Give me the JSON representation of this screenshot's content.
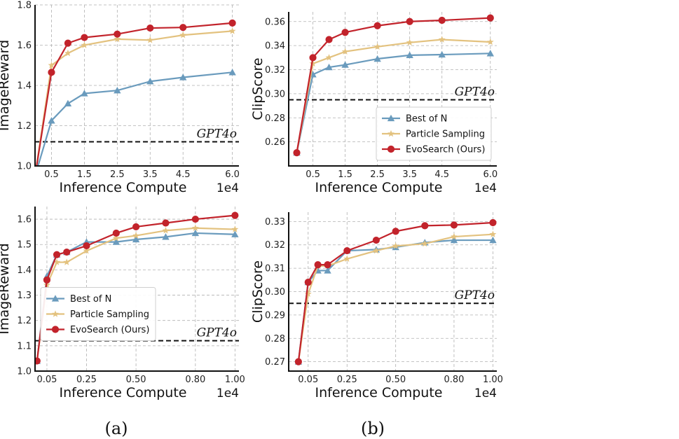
{
  "colors": {
    "best": "#6a9bbd",
    "particle": "#e3c27f",
    "evo": "#c2232b",
    "baseline": "#111111",
    "grid": "#b0b0b0"
  },
  "captions": [
    "(a)",
    "(b)"
  ],
  "chart_data": [
    {
      "type": "line",
      "ylabel": "ImageReward",
      "xlabel": "Inference Compute",
      "x_exponent": "1e4",
      "ylim": [
        1.0,
        1.8
      ],
      "xlim": [
        0,
        6.2
      ],
      "xticks": [
        0.5,
        1.5,
        2.5,
        3.5,
        4.5,
        6.0
      ],
      "xtick_labels": [
        "0.5",
        "1.5",
        "2.5",
        "3.5",
        "4.5",
        "6.0"
      ],
      "yticks": [
        1.0,
        1.2,
        1.4,
        1.6,
        1.8
      ],
      "ytick_labels": [
        "1.0",
        "1.2",
        "1.4",
        "1.6",
        "1.8"
      ],
      "baseline": {
        "label": "GPT4o",
        "value": 1.12
      },
      "legend": null,
      "series": [
        {
          "name": "Best of N",
          "key": "best",
          "marker": "triangle",
          "x": [
            0.0,
            0.5,
            1.0,
            1.5,
            2.5,
            3.5,
            4.5,
            6.0
          ],
          "values": [
            0.95,
            1.225,
            1.31,
            1.36,
            1.375,
            1.42,
            1.44,
            1.465
          ]
        },
        {
          "name": "Particle Sampling",
          "key": "particle",
          "marker": "star",
          "x": [
            0.0,
            0.5,
            1.0,
            1.5,
            2.5,
            3.5,
            4.5,
            6.0
          ],
          "values": [
            0.95,
            1.5,
            1.56,
            1.6,
            1.63,
            1.625,
            1.65,
            1.67
          ]
        },
        {
          "name": "EvoSearch (Ours)",
          "key": "evo",
          "marker": "circle",
          "x": [
            0.0,
            0.5,
            1.0,
            1.5,
            2.5,
            3.5,
            4.5,
            6.0
          ],
          "values": [
            0.95,
            1.465,
            1.61,
            1.638,
            1.655,
            1.685,
            1.688,
            1.71
          ]
        }
      ]
    },
    {
      "type": "line",
      "ylabel": "ClipScore",
      "xlabel": "Inference Compute",
      "x_exponent": "1e4",
      "ylim": [
        0.24,
        0.368
      ],
      "xlim": [
        -0.25,
        6.2
      ],
      "xticks": [
        0.5,
        1.5,
        2.5,
        3.5,
        4.5,
        6.0
      ],
      "xtick_labels": [
        "0.5",
        "1.5",
        "2.5",
        "3.5",
        "4.5",
        "6.0"
      ],
      "yticks": [
        0.26,
        0.28,
        0.3,
        0.32,
        0.34,
        0.36
      ],
      "ytick_labels": [
        "0.26",
        "0.28",
        "0.30",
        "0.32",
        "0.34",
        "0.36"
      ],
      "baseline": {
        "label": "GPT4o",
        "value": 0.295
      },
      "legend": "lower-right",
      "series": [
        {
          "name": "Best of N",
          "key": "best",
          "marker": "triangle",
          "x": [
            0.0,
            0.5,
            1.0,
            1.5,
            2.5,
            3.5,
            4.5,
            6.0
          ],
          "values": [
            0.251,
            0.316,
            0.322,
            0.324,
            0.329,
            0.332,
            0.3325,
            0.3335
          ]
        },
        {
          "name": "Particle Sampling",
          "key": "particle",
          "marker": "star",
          "x": [
            0.0,
            0.5,
            1.0,
            1.5,
            2.5,
            3.5,
            4.5,
            6.0
          ],
          "values": [
            0.251,
            0.325,
            0.33,
            0.335,
            0.339,
            0.3425,
            0.345,
            0.343
          ]
        },
        {
          "name": "EvoSearch (Ours)",
          "key": "evo",
          "marker": "circle",
          "x": [
            0.0,
            0.5,
            1.0,
            1.5,
            2.5,
            3.5,
            4.5,
            6.0
          ],
          "values": [
            0.251,
            0.33,
            0.345,
            0.351,
            0.3565,
            0.36,
            0.361,
            0.363
          ]
        }
      ]
    },
    {
      "type": "line",
      "ylabel": "ImageReward",
      "xlabel": "Inference Compute",
      "x_exponent": "1e4",
      "ylim": [
        1.0,
        1.65
      ],
      "xlim": [
        -0.01,
        1.02
      ],
      "xticks": [
        0.05,
        0.25,
        0.5,
        0.8,
        1.0
      ],
      "xtick_labels": [
        "0.05",
        "0.25",
        "0.50",
        "0.80",
        "1.00"
      ],
      "yticks": [
        1.0,
        1.1,
        1.2,
        1.3,
        1.4,
        1.5,
        1.6
      ],
      "ytick_labels": [
        "1.0",
        "1.1",
        "1.2",
        "1.3",
        "1.4",
        "1.5",
        "1.6"
      ],
      "baseline": {
        "label": "GPT4o",
        "value": 1.12
      },
      "legend": "center-left",
      "series": [
        {
          "name": "Best of N",
          "key": "best",
          "marker": "triangle",
          "x": [
            0.0,
            0.05,
            0.1,
            0.15,
            0.25,
            0.4,
            0.5,
            0.65,
            0.8,
            1.0
          ],
          "values": [
            1.04,
            1.375,
            1.46,
            1.47,
            1.51,
            1.51,
            1.52,
            1.53,
            1.545,
            1.54
          ]
        },
        {
          "name": "Particle Sampling",
          "key": "particle",
          "marker": "star",
          "x": [
            0.0,
            0.05,
            0.1,
            0.15,
            0.25,
            0.4,
            0.5,
            0.65,
            0.8,
            1.0
          ],
          "values": [
            1.04,
            1.34,
            1.43,
            1.43,
            1.475,
            1.525,
            1.535,
            1.555,
            1.565,
            1.56
          ]
        },
        {
          "name": "EvoSearch (Ours)",
          "key": "evo",
          "marker": "circle",
          "x": [
            0.0,
            0.05,
            0.1,
            0.15,
            0.25,
            0.4,
            0.5,
            0.65,
            0.8,
            1.0
          ],
          "values": [
            1.04,
            1.36,
            1.46,
            1.47,
            1.495,
            1.545,
            1.57,
            1.585,
            1.6,
            1.615
          ]
        }
      ]
    },
    {
      "type": "line",
      "ylabel": "ClipScore",
      "xlabel": "Inference Compute",
      "x_exponent": "1e4",
      "ylim": [
        0.266,
        0.334
      ],
      "xlim": [
        -0.05,
        1.02
      ],
      "xticks": [
        0.05,
        0.25,
        0.5,
        0.8,
        1.0
      ],
      "xtick_labels": [
        "0.05",
        "0.25",
        "0.50",
        "0.80",
        "1.00"
      ],
      "yticks": [
        0.27,
        0.28,
        0.29,
        0.3,
        0.31,
        0.32,
        0.33
      ],
      "ytick_labels": [
        "0.27",
        "0.28",
        "0.29",
        "0.30",
        "0.31",
        "0.32",
        "0.33"
      ],
      "baseline": {
        "label": "GPT4o",
        "value": 0.295
      },
      "legend": null,
      "series": [
        {
          "name": "Best of N",
          "key": "best",
          "marker": "triangle",
          "x": [
            0.0,
            0.05,
            0.1,
            0.15,
            0.25,
            0.4,
            0.5,
            0.65,
            0.8,
            1.0
          ],
          "values": [
            0.27,
            0.304,
            0.309,
            0.309,
            0.3175,
            0.318,
            0.319,
            0.321,
            0.322,
            0.322
          ]
        },
        {
          "name": "Particle Sampling",
          "key": "particle",
          "marker": "star",
          "x": [
            0.0,
            0.05,
            0.1,
            0.15,
            0.25,
            0.4,
            0.5,
            0.65,
            0.8,
            1.0
          ],
          "values": [
            0.27,
            0.299,
            0.311,
            0.311,
            0.314,
            0.3175,
            0.3195,
            0.3205,
            0.3235,
            0.3245
          ]
        },
        {
          "name": "EvoSearch (Ours)",
          "key": "evo",
          "marker": "circle",
          "x": [
            0.0,
            0.05,
            0.1,
            0.15,
            0.25,
            0.4,
            0.5,
            0.65,
            0.8,
            1.0
          ],
          "values": [
            0.27,
            0.304,
            0.3115,
            0.3115,
            0.3175,
            0.322,
            0.3258,
            0.3282,
            0.3285,
            0.3295
          ]
        }
      ]
    }
  ]
}
